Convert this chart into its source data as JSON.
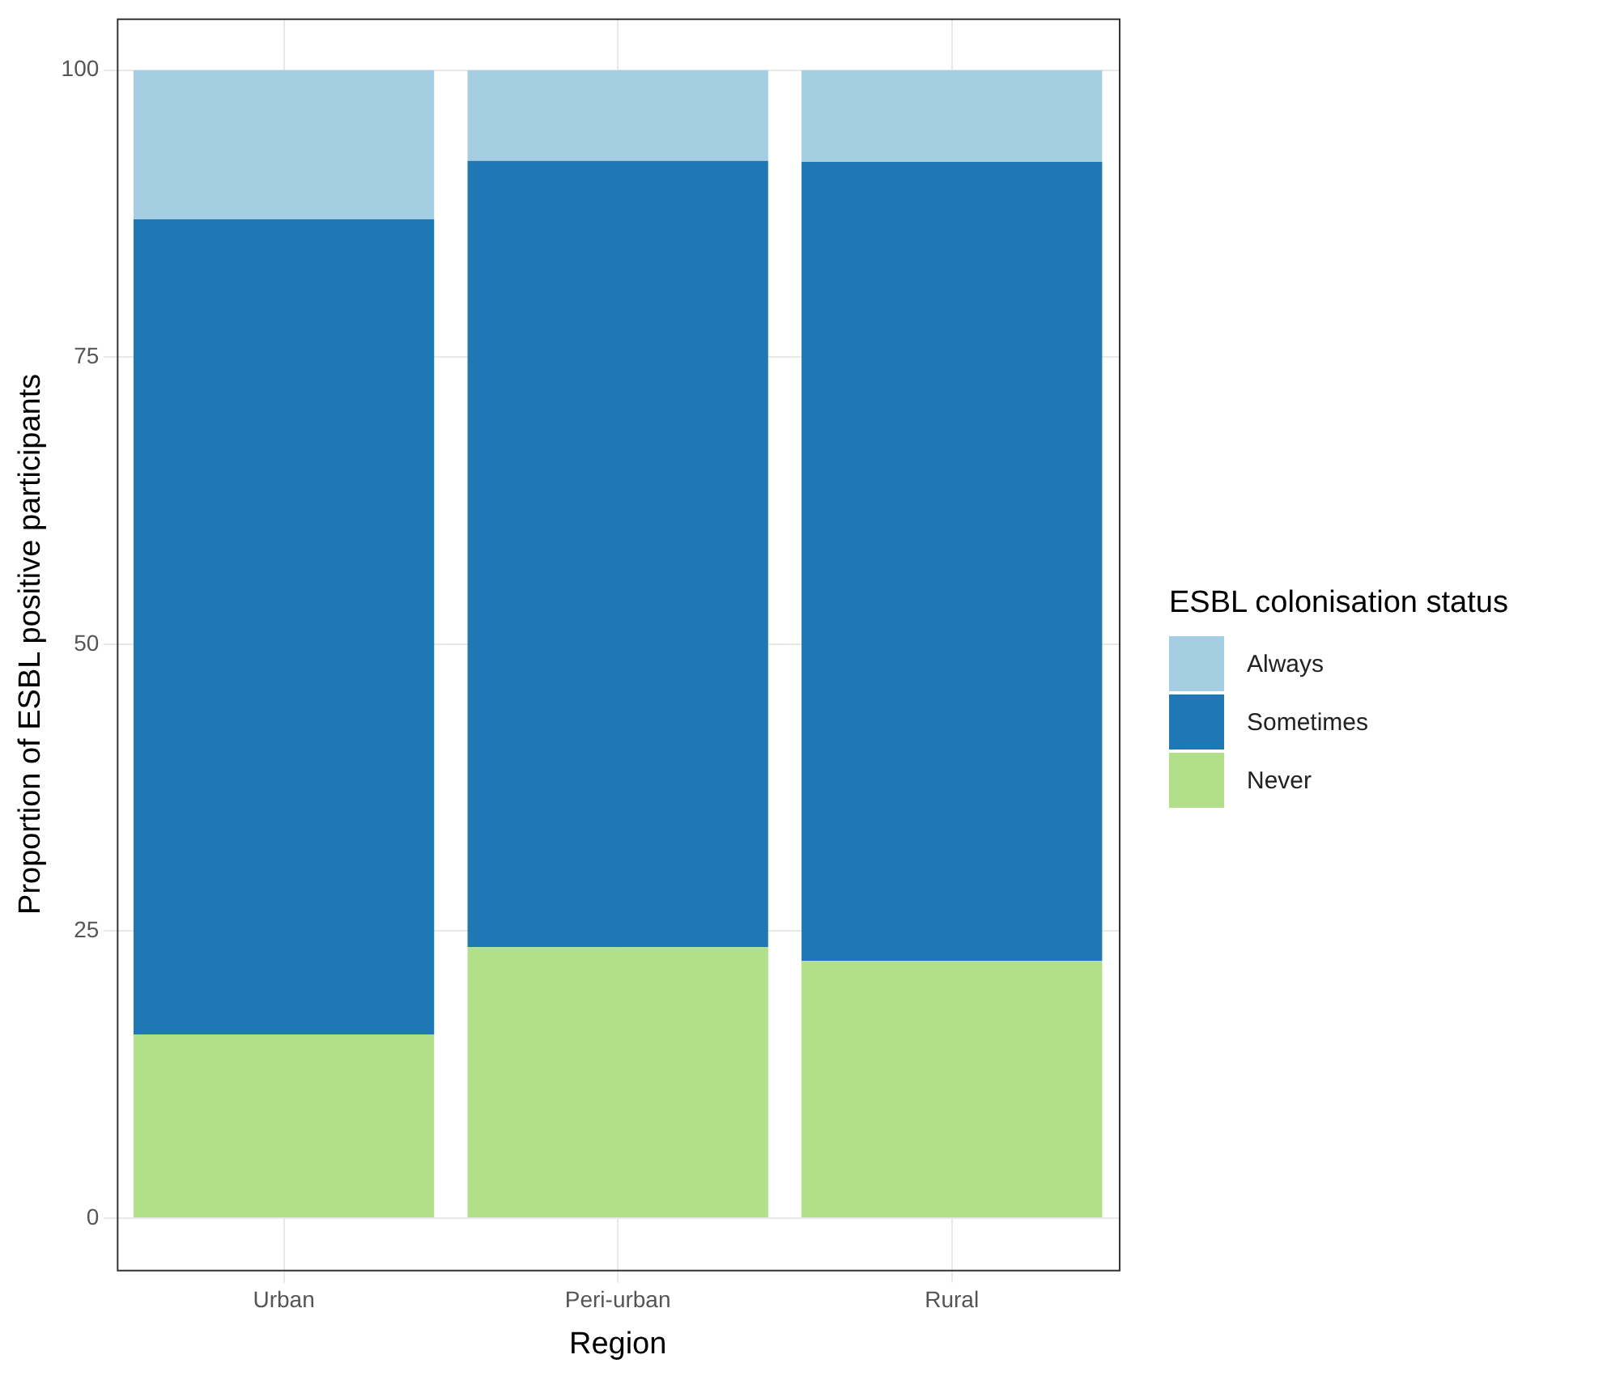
{
  "chart_data": {
    "type": "bar",
    "stacked": true,
    "xlabel": "Region",
    "ylabel": "Proportion of ESBL positive participants",
    "legend_title": "ESBL colonisation status",
    "categories": [
      "Urban",
      "Peri-urban",
      "Rural"
    ],
    "series": [
      {
        "name": "Never",
        "color": "#b2df8a",
        "values": [
          16,
          23.6,
          22.4
        ]
      },
      {
        "name": "Sometimes",
        "color": "#1f78b4",
        "values": [
          71,
          68.5,
          69.6
        ]
      },
      {
        "name": "Always",
        "color": "#a6cee3",
        "values": [
          13,
          7.9,
          8
        ]
      }
    ],
    "ylim": [
      -4.5,
      104.5
    ],
    "yticks": [
      0,
      25,
      50,
      75,
      100
    ],
    "grid": true,
    "legend": "right"
  }
}
